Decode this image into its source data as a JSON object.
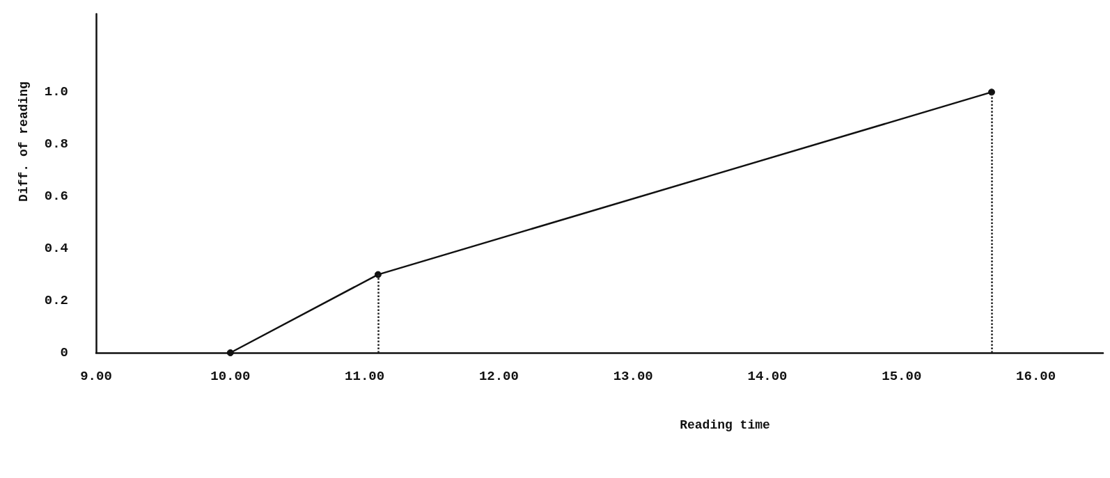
{
  "chart_data": {
    "type": "line",
    "xlabel": "Reading time",
    "ylabel": "Diff. of reading",
    "x": [
      10.0,
      11.1,
      15.67
    ],
    "series": [
      {
        "color": "#111111",
        "values": [
          0,
          0.3,
          1.0
        ]
      }
    ],
    "xlim": [
      9,
      16.5
    ],
    "xticks": [
      {
        "value": 9,
        "label": "9.00"
      },
      {
        "value": 10,
        "label": "10.00"
      },
      {
        "value": 11,
        "label": "11.00"
      },
      {
        "value": 12,
        "label": "12.00"
      },
      {
        "value": 13,
        "label": "13.00"
      },
      {
        "value": 14,
        "label": "14.00"
      },
      {
        "value": 15,
        "label": "15.00"
      },
      {
        "value": 16,
        "label": "16.00"
      }
    ],
    "ylim": [
      0,
      1.3
    ],
    "yticks": [
      0,
      0.2,
      0.4,
      0.6,
      0.8,
      {
        "value": 1,
        "label": "1.0"
      }
    ],
    "ref_lines": [
      {
        "axis": "x",
        "value": 11.1,
        "line_style": "dotted"
      },
      {
        "axis": "x",
        "value": 15.67,
        "line_style": "dotted"
      }
    ],
    "marker": "circle",
    "line_style": "solid",
    "grid": false
  }
}
